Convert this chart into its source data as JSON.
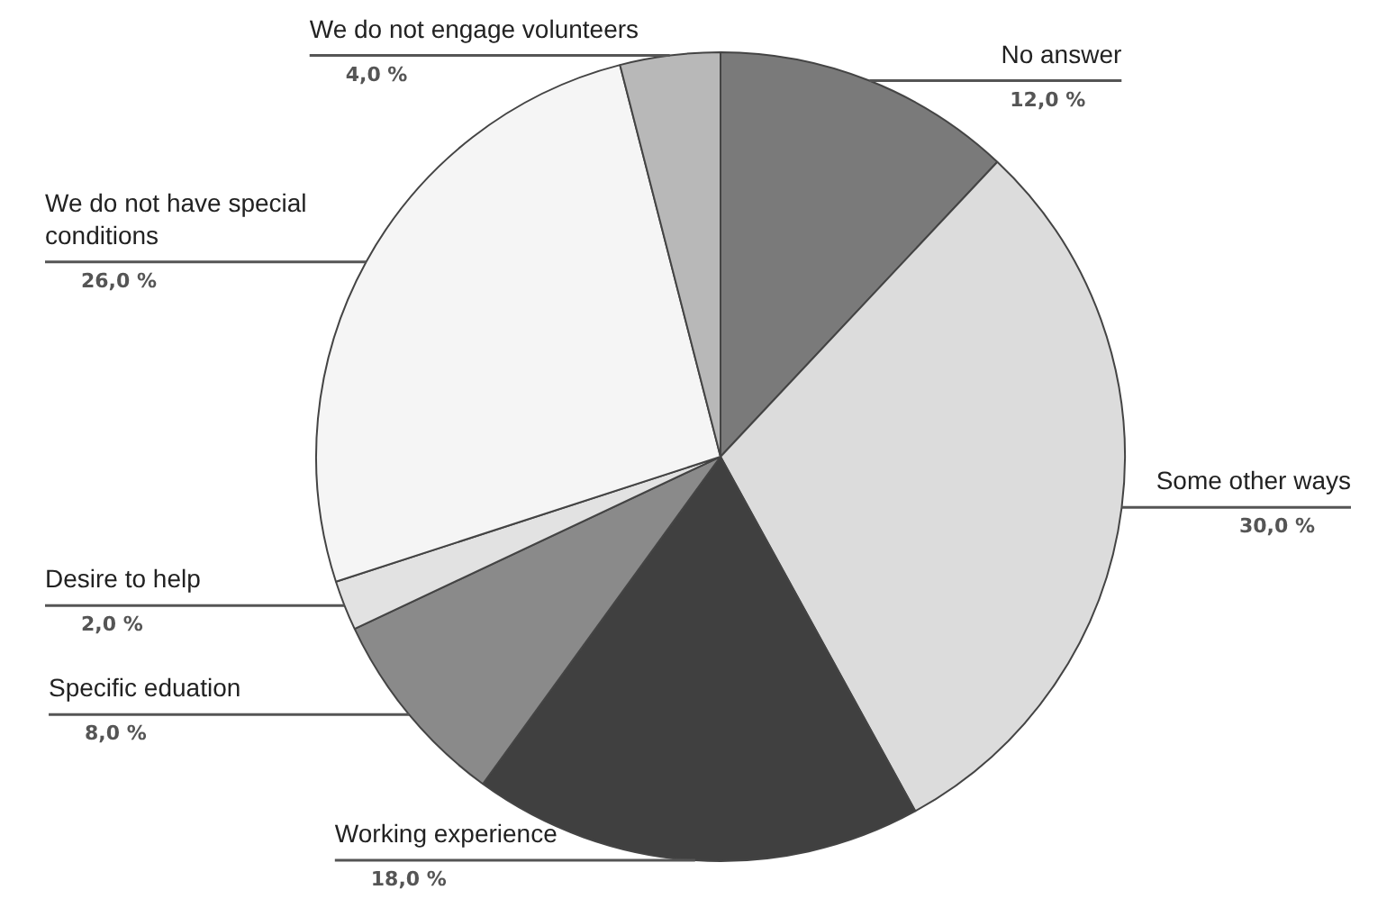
{
  "chart_data": {
    "type": "pie",
    "categories": [
      "No answer",
      "Some other ways",
      "Working experience",
      "Specific eduation",
      "Desire to help",
      "We do not have special conditions",
      "We do not engage volunteers"
    ],
    "values": [
      12,
      30,
      18,
      8,
      2,
      26,
      4
    ],
    "colors": [
      "#7a7a7a",
      "#dcdcdc",
      "#404040",
      "#8a8a8a",
      "#e2e2e2",
      "#f5f5f5",
      "#b8b8b8"
    ],
    "value_labels": [
      "12,0 %",
      "30,0 %",
      "18,0 %",
      "8,0 %",
      "2,0 %",
      "26,0 %",
      "4,0 %"
    ],
    "legend": false
  }
}
